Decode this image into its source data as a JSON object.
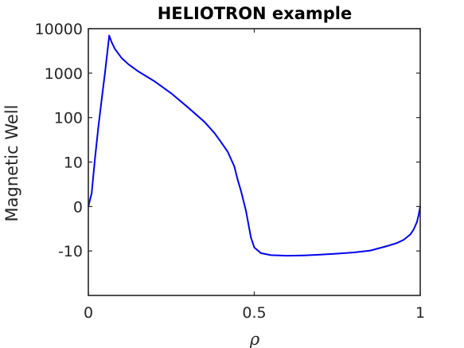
{
  "chart_data": {
    "type": "line",
    "title": "HELIOTRON example",
    "xlabel": "ρ",
    "ylabel": "Magnetic Well",
    "xlim": [
      0,
      1
    ],
    "x_ticks": [
      0,
      0.5,
      1
    ],
    "x_tick_labels": [
      "0",
      "0.5",
      "1"
    ],
    "y_scale": "symmetric-log",
    "y_ticks": [
      -10,
      0,
      10,
      100,
      1000,
      10000
    ],
    "y_tick_labels": [
      "-10",
      "0",
      "10",
      "100",
      "1000",
      "10000"
    ],
    "grid": false,
    "legend": "none",
    "series": [
      {
        "color": "#0000ee",
        "x": [
          0.0,
          0.01,
          0.02,
          0.03,
          0.04,
          0.05,
          0.063,
          0.07,
          0.08,
          0.1,
          0.12,
          0.15,
          0.2,
          0.25,
          0.3,
          0.35,
          0.38,
          0.4,
          0.42,
          0.44,
          0.45,
          0.46,
          0.465,
          0.47,
          0.475,
          0.48,
          0.49,
          0.5,
          0.52,
          0.55,
          0.6,
          0.65,
          0.7,
          0.75,
          0.8,
          0.85,
          0.9,
          0.93,
          0.95,
          0.97,
          0.98,
          0.99,
          0.995,
          1.0
        ],
        "y": [
          0,
          3,
          12,
          60,
          250,
          1000,
          7000,
          5000,
          3500,
          2200,
          1600,
          1100,
          650,
          350,
          170,
          80,
          45,
          28,
          17,
          9,
          6,
          3.5,
          2,
          0.5,
          -1,
          -3,
          -7,
          -9.2,
          -11.2,
          -12.4,
          -12.8,
          -12.6,
          -12.1,
          -11.5,
          -10.8,
          -9.9,
          -8.9,
          -8.2,
          -7.5,
          -6.3,
          -5.2,
          -3.5,
          -2,
          0
        ]
      }
    ]
  }
}
